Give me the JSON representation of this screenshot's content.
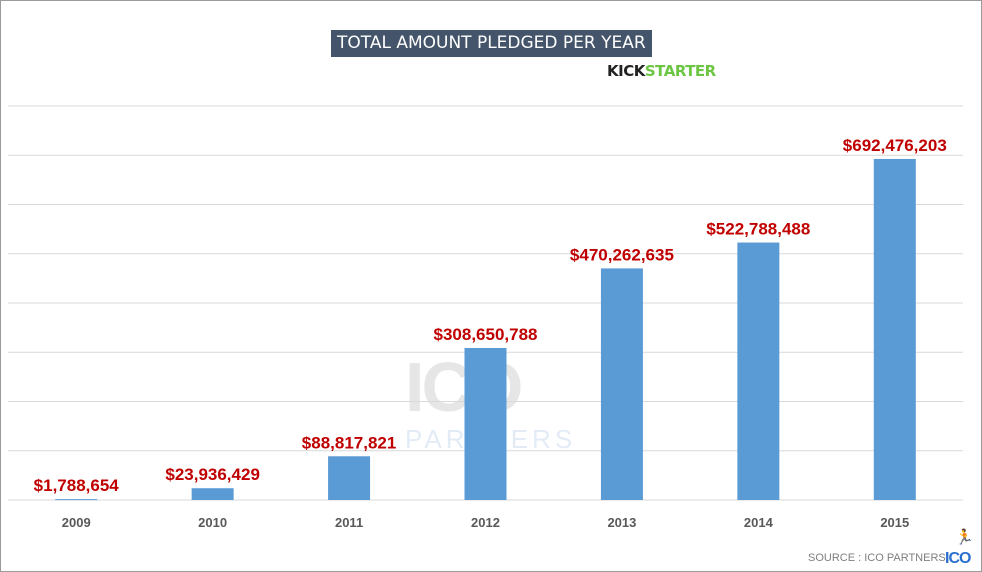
{
  "chart_data": {
    "type": "bar",
    "title": "TOTAL AMOUNT PLEDGED PER YEAR",
    "categories": [
      "2009",
      "2010",
      "2011",
      "2012",
      "2013",
      "2014",
      "2015"
    ],
    "values": [
      1788654,
      23936429,
      88817821,
      308650788,
      470262635,
      522788488,
      692476203
    ],
    "data_labels": [
      "$1,788,654",
      "$23,936,429",
      "$88,817,821",
      "$308,650,788",
      "$470,262,635",
      "$522,788,488",
      "$692,476,203"
    ],
    "xlabel": "",
    "ylabel": "",
    "ylim": [
      0,
      800000000
    ],
    "gridline_step": 100000000,
    "grid": true,
    "y_tick_labels_shown": false,
    "bar_color": "#5b9bd5",
    "label_color": "#c00000"
  },
  "logo": {
    "kick": "KICK",
    "starter": "STARTER"
  },
  "watermark": {
    "main": "ICO",
    "sub": "PARTNERS"
  },
  "footer": {
    "source": "SOURCE : ICO PARTNERS",
    "brand": "ICO"
  }
}
